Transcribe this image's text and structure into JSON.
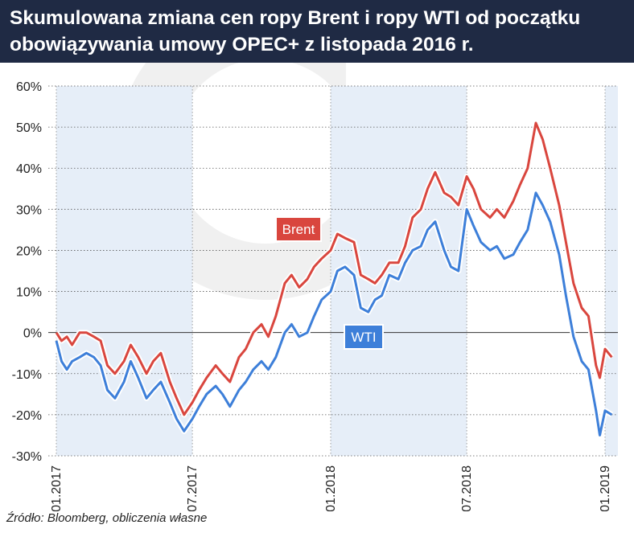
{
  "title": "Skumulowana zmiana cen ropy Brent i ropy WTI od początku\nobowiązywania umowy OPEC+ z listopada 2016 r.",
  "source": "Źródło: Bloomberg, obliczenia własne",
  "colors": {
    "header": "#1f2a44",
    "brent": "#d9463e",
    "wti": "#3d7fd9",
    "band": "#e6eef8",
    "watermark": "#f0f0f0"
  },
  "chart_data": {
    "type": "line",
    "title": "Skumulowana zmiana cen ropy Brent i ropy WTI od początku obowiązywania umowy OPEC+ z listopada 2016 r.",
    "xlabel": "",
    "ylabel": "",
    "unit": "%",
    "ylim": [
      -30,
      60
    ],
    "xlim": [
      "2017-01",
      "2019-01"
    ],
    "yticks": [
      "-30%",
      "-20%",
      "-10%",
      "0%",
      "10%",
      "20%",
      "30%",
      "40%",
      "50%",
      "60%"
    ],
    "xticks": [
      "01.2017",
      "07.2017",
      "01.2018",
      "07.2018",
      "01.2019"
    ],
    "grid": true,
    "shaded_periods": [
      [
        "2017-01",
        "2017-07"
      ],
      [
        "2018-01",
        "2018-07"
      ],
      [
        "2019-01",
        "2019-01-31"
      ]
    ],
    "series": [
      {
        "name": "Brent",
        "label": "Brent",
        "points": [
          [
            "2017-01-01",
            0
          ],
          [
            "2017-01-08",
            -2
          ],
          [
            "2017-01-15",
            -1
          ],
          [
            "2017-01-22",
            -3
          ],
          [
            "2017-02-01",
            0
          ],
          [
            "2017-02-10",
            0
          ],
          [
            "2017-02-20",
            -1
          ],
          [
            "2017-03-01",
            -2
          ],
          [
            "2017-03-10",
            -8
          ],
          [
            "2017-03-20",
            -10
          ],
          [
            "2017-04-01",
            -7
          ],
          [
            "2017-04-10",
            -3
          ],
          [
            "2017-04-20",
            -6
          ],
          [
            "2017-05-01",
            -10
          ],
          [
            "2017-05-10",
            -7
          ],
          [
            "2017-05-20",
            -5
          ],
          [
            "2017-06-01",
            -12
          ],
          [
            "2017-06-10",
            -16
          ],
          [
            "2017-06-20",
            -20
          ],
          [
            "2017-07-01",
            -17
          ],
          [
            "2017-07-10",
            -14
          ],
          [
            "2017-07-20",
            -11
          ],
          [
            "2017-08-01",
            -8
          ],
          [
            "2017-08-10",
            -10
          ],
          [
            "2017-08-20",
            -12
          ],
          [
            "2017-09-01",
            -6
          ],
          [
            "2017-09-10",
            -4
          ],
          [
            "2017-09-20",
            0
          ],
          [
            "2017-10-01",
            2
          ],
          [
            "2017-10-10",
            -1
          ],
          [
            "2017-10-20",
            4
          ],
          [
            "2017-11-01",
            12
          ],
          [
            "2017-11-10",
            14
          ],
          [
            "2017-11-20",
            11
          ],
          [
            "2017-12-01",
            13
          ],
          [
            "2017-12-10",
            16
          ],
          [
            "2017-12-20",
            18
          ],
          [
            "2018-01-01",
            20
          ],
          [
            "2018-01-10",
            24
          ],
          [
            "2018-01-20",
            23
          ],
          [
            "2018-02-01",
            22
          ],
          [
            "2018-02-10",
            14
          ],
          [
            "2018-02-20",
            13
          ],
          [
            "2018-03-01",
            12
          ],
          [
            "2018-03-10",
            14
          ],
          [
            "2018-03-20",
            17
          ],
          [
            "2018-04-01",
            17
          ],
          [
            "2018-04-10",
            21
          ],
          [
            "2018-04-20",
            28
          ],
          [
            "2018-05-01",
            30
          ],
          [
            "2018-05-10",
            35
          ],
          [
            "2018-05-20",
            39
          ],
          [
            "2018-06-01",
            34
          ],
          [
            "2018-06-10",
            33
          ],
          [
            "2018-06-20",
            31
          ],
          [
            "2018-07-01",
            38
          ],
          [
            "2018-07-10",
            35
          ],
          [
            "2018-07-20",
            30
          ],
          [
            "2018-08-01",
            28
          ],
          [
            "2018-08-10",
            30
          ],
          [
            "2018-08-20",
            28
          ],
          [
            "2018-09-01",
            32
          ],
          [
            "2018-09-10",
            36
          ],
          [
            "2018-09-20",
            40
          ],
          [
            "2018-10-01",
            51
          ],
          [
            "2018-10-10",
            47
          ],
          [
            "2018-10-20",
            40
          ],
          [
            "2018-11-01",
            31
          ],
          [
            "2018-11-10",
            22
          ],
          [
            "2018-11-20",
            12
          ],
          [
            "2018-12-01",
            6
          ],
          [
            "2018-12-10",
            4
          ],
          [
            "2018-12-20",
            -8
          ],
          [
            "2018-12-25",
            -11
          ],
          [
            "2019-01-01",
            -4
          ],
          [
            "2019-01-10",
            -6
          ]
        ]
      },
      {
        "name": "WTI",
        "label": "WTI",
        "points": [
          [
            "2017-01-01",
            -2
          ],
          [
            "2017-01-08",
            -7
          ],
          [
            "2017-01-15",
            -9
          ],
          [
            "2017-01-22",
            -7
          ],
          [
            "2017-02-01",
            -6
          ],
          [
            "2017-02-10",
            -5
          ],
          [
            "2017-02-20",
            -6
          ],
          [
            "2017-03-01",
            -8
          ],
          [
            "2017-03-10",
            -14
          ],
          [
            "2017-03-20",
            -16
          ],
          [
            "2017-04-01",
            -12
          ],
          [
            "2017-04-10",
            -7
          ],
          [
            "2017-04-20",
            -11
          ],
          [
            "2017-05-01",
            -16
          ],
          [
            "2017-05-10",
            -14
          ],
          [
            "2017-05-20",
            -12
          ],
          [
            "2017-06-01",
            -17
          ],
          [
            "2017-06-10",
            -21
          ],
          [
            "2017-06-20",
            -24
          ],
          [
            "2017-07-01",
            -21
          ],
          [
            "2017-07-10",
            -18
          ],
          [
            "2017-07-20",
            -15
          ],
          [
            "2017-08-01",
            -13
          ],
          [
            "2017-08-10",
            -15
          ],
          [
            "2017-08-20",
            -18
          ],
          [
            "2017-09-01",
            -14
          ],
          [
            "2017-09-10",
            -12
          ],
          [
            "2017-09-20",
            -9
          ],
          [
            "2017-10-01",
            -7
          ],
          [
            "2017-10-10",
            -9
          ],
          [
            "2017-10-20",
            -6
          ],
          [
            "2017-11-01",
            0
          ],
          [
            "2017-11-10",
            2
          ],
          [
            "2017-11-20",
            -1
          ],
          [
            "2017-12-01",
            0
          ],
          [
            "2017-12-10",
            4
          ],
          [
            "2017-12-20",
            8
          ],
          [
            "2018-01-01",
            10
          ],
          [
            "2018-01-10",
            15
          ],
          [
            "2018-01-20",
            16
          ],
          [
            "2018-02-01",
            14
          ],
          [
            "2018-02-10",
            6
          ],
          [
            "2018-02-20",
            5
          ],
          [
            "2018-03-01",
            8
          ],
          [
            "2018-03-10",
            9
          ],
          [
            "2018-03-20",
            14
          ],
          [
            "2018-04-01",
            13
          ],
          [
            "2018-04-10",
            17
          ],
          [
            "2018-04-20",
            20
          ],
          [
            "2018-05-01",
            21
          ],
          [
            "2018-05-10",
            25
          ],
          [
            "2018-05-20",
            27
          ],
          [
            "2018-06-01",
            20
          ],
          [
            "2018-06-10",
            16
          ],
          [
            "2018-06-20",
            15
          ],
          [
            "2018-07-01",
            30
          ],
          [
            "2018-07-10",
            26
          ],
          [
            "2018-07-20",
            22
          ],
          [
            "2018-08-01",
            20
          ],
          [
            "2018-08-10",
            21
          ],
          [
            "2018-08-20",
            18
          ],
          [
            "2018-09-01",
            19
          ],
          [
            "2018-09-10",
            22
          ],
          [
            "2018-09-20",
            25
          ],
          [
            "2018-10-01",
            34
          ],
          [
            "2018-10-10",
            31
          ],
          [
            "2018-10-20",
            27
          ],
          [
            "2018-11-01",
            19
          ],
          [
            "2018-11-10",
            9
          ],
          [
            "2018-11-20",
            -1
          ],
          [
            "2018-12-01",
            -7
          ],
          [
            "2018-12-10",
            -9
          ],
          [
            "2018-12-20",
            -19
          ],
          [
            "2018-12-25",
            -25
          ],
          [
            "2019-01-01",
            -19
          ],
          [
            "2019-01-10",
            -20
          ]
        ]
      }
    ]
  }
}
